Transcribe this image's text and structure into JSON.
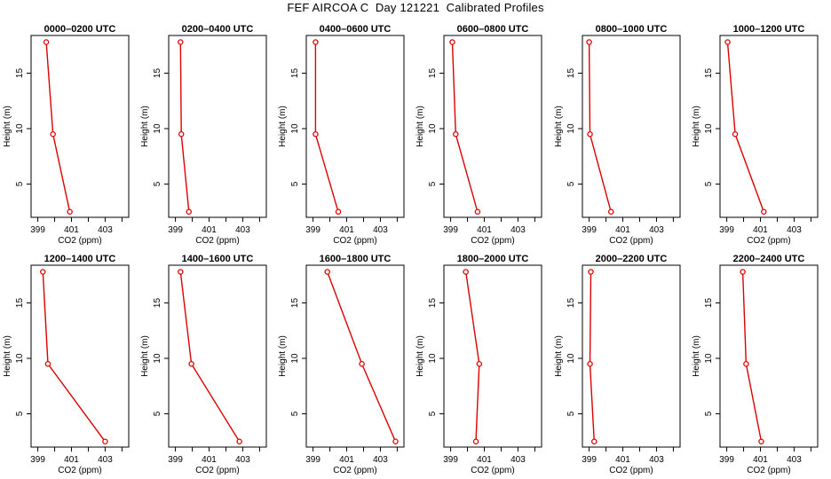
{
  "title": "FEF AIRCOA C  Day 121221  Calibrated Profiles",
  "chart_data": [
    {
      "type": "line",
      "title": "0000–0200 UTC",
      "xlabel": "CO2 (ppm)",
      "ylabel": "Height (m)",
      "xlim": [
        398.6,
        404.4
      ],
      "ylim": [
        2.0,
        18.4
      ],
      "xticks": [
        "399",
        "401",
        "403"
      ],
      "yticks": [
        "5",
        "10",
        "15"
      ],
      "x": [
        399.5,
        399.9,
        400.9
      ],
      "y": [
        17.8,
        9.5,
        2.5
      ],
      "color": "#dd0000"
    },
    {
      "type": "line",
      "title": "0200–0400 UTC",
      "xlabel": "CO2 (ppm)",
      "ylabel": "Height (m)",
      "xlim": [
        398.6,
        404.4
      ],
      "ylim": [
        2.0,
        18.4
      ],
      "xticks": [
        "399",
        "401",
        "403"
      ],
      "yticks": [
        "5",
        "10",
        "15"
      ],
      "x": [
        399.3,
        399.35,
        399.8
      ],
      "y": [
        17.8,
        9.5,
        2.5
      ],
      "color": "#dd0000"
    },
    {
      "type": "line",
      "title": "0400–0600 UTC",
      "xlabel": "CO2 (ppm)",
      "ylabel": "Height (m)",
      "xlim": [
        398.6,
        404.4
      ],
      "ylim": [
        2.0,
        18.4
      ],
      "xticks": [
        "399",
        "401",
        "403"
      ],
      "yticks": [
        "5",
        "10",
        "15"
      ],
      "x": [
        399.15,
        399.15,
        400.5
      ],
      "y": [
        17.8,
        9.5,
        2.5
      ],
      "color": "#dd0000"
    },
    {
      "type": "line",
      "title": "0600–0800 UTC",
      "xlabel": "CO2 (ppm)",
      "ylabel": "Height (m)",
      "xlim": [
        398.6,
        404.4
      ],
      "ylim": [
        2.0,
        18.4
      ],
      "xticks": [
        "399",
        "401",
        "403"
      ],
      "yticks": [
        "5",
        "10",
        "15"
      ],
      "x": [
        399.1,
        399.3,
        400.6
      ],
      "y": [
        17.8,
        9.5,
        2.5
      ],
      "color": "#dd0000"
    },
    {
      "type": "line",
      "title": "0800–1000 UTC",
      "xlabel": "CO2 (ppm)",
      "ylabel": "Height (m)",
      "xlim": [
        398.6,
        404.4
      ],
      "ylim": [
        2.0,
        18.4
      ],
      "xticks": [
        "399",
        "401",
        "403"
      ],
      "yticks": [
        "5",
        "10",
        "15"
      ],
      "x": [
        399.0,
        399.05,
        400.3
      ],
      "y": [
        17.8,
        9.5,
        2.5
      ],
      "color": "#dd0000"
    },
    {
      "type": "line",
      "title": "1000–1200 UTC",
      "xlabel": "CO2 (ppm)",
      "ylabel": "Height (m)",
      "xlim": [
        398.6,
        404.4
      ],
      "ylim": [
        2.0,
        18.4
      ],
      "xticks": [
        "399",
        "401",
        "403"
      ],
      "yticks": [
        "5",
        "10",
        "15"
      ],
      "x": [
        399.05,
        399.5,
        401.2
      ],
      "y": [
        17.8,
        9.5,
        2.5
      ],
      "color": "#dd0000"
    },
    {
      "type": "line",
      "title": "1200–1400 UTC",
      "xlabel": "CO2 (ppm)",
      "ylabel": "Height (m)",
      "xlim": [
        398.6,
        404.4
      ],
      "ylim": [
        2.0,
        18.4
      ],
      "xticks": [
        "399",
        "401",
        "403"
      ],
      "yticks": [
        "5",
        "10",
        "15"
      ],
      "x": [
        399.3,
        399.6,
        403.0
      ],
      "y": [
        17.8,
        9.5,
        2.5
      ],
      "color": "#dd0000"
    },
    {
      "type": "line",
      "title": "1400–1600 UTC",
      "xlabel": "CO2 (ppm)",
      "ylabel": "Height (m)",
      "xlim": [
        398.6,
        404.4
      ],
      "ylim": [
        2.0,
        18.4
      ],
      "xticks": [
        "399",
        "401",
        "403"
      ],
      "yticks": [
        "5",
        "10",
        "15"
      ],
      "x": [
        399.3,
        399.95,
        402.8
      ],
      "y": [
        17.8,
        9.5,
        2.5
      ],
      "color": "#dd0000"
    },
    {
      "type": "line",
      "title": "1600–1800 UTC",
      "xlabel": "CO2 (ppm)",
      "ylabel": "Height (m)",
      "xlim": [
        398.6,
        404.4
      ],
      "ylim": [
        2.0,
        18.4
      ],
      "xticks": [
        "399",
        "401",
        "403"
      ],
      "yticks": [
        "5",
        "10",
        "15"
      ],
      "x": [
        399.85,
        401.9,
        403.9
      ],
      "y": [
        17.8,
        9.5,
        2.5
      ],
      "color": "#dd0000"
    },
    {
      "type": "line",
      "title": "1800–2000 UTC",
      "xlabel": "CO2 (ppm)",
      "ylabel": "Height (m)",
      "xlim": [
        398.6,
        404.4
      ],
      "ylim": [
        2.0,
        18.4
      ],
      "xticks": [
        "399",
        "401",
        "403"
      ],
      "yticks": [
        "5",
        "10",
        "15"
      ],
      "x": [
        399.9,
        400.7,
        400.5
      ],
      "y": [
        17.8,
        9.5,
        2.5
      ],
      "color": "#dd0000"
    },
    {
      "type": "line",
      "title": "2000–2200 UTC",
      "xlabel": "CO2 (ppm)",
      "ylabel": "Height (m)",
      "xlim": [
        398.6,
        404.4
      ],
      "ylim": [
        2.0,
        18.4
      ],
      "xticks": [
        "399",
        "401",
        "403"
      ],
      "yticks": [
        "5",
        "10",
        "15"
      ],
      "x": [
        399.1,
        399.05,
        399.3
      ],
      "y": [
        17.8,
        9.5,
        2.5
      ],
      "color": "#dd0000"
    },
    {
      "type": "line",
      "title": "2200–2400 UTC",
      "xlabel": "CO2 (ppm)",
      "ylabel": "Height (m)",
      "xlim": [
        398.6,
        404.4
      ],
      "ylim": [
        2.0,
        18.4
      ],
      "xticks": [
        "399",
        "401",
        "403"
      ],
      "yticks": [
        "5",
        "10",
        "15"
      ],
      "x": [
        399.95,
        400.15,
        401.05
      ],
      "y": [
        17.8,
        9.5,
        2.5
      ],
      "color": "#dd0000"
    }
  ]
}
